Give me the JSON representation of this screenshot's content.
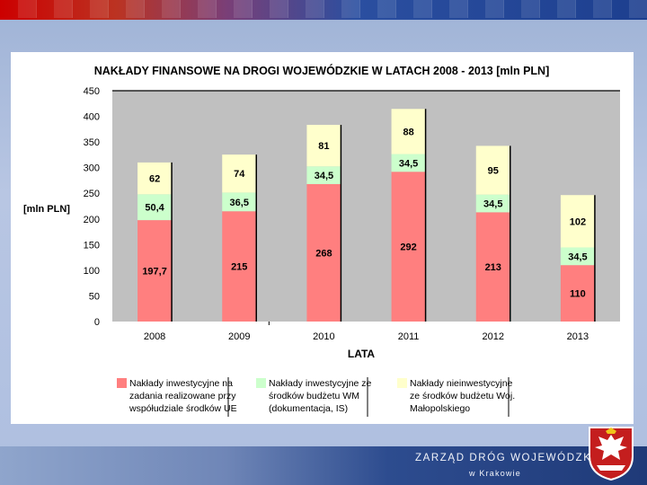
{
  "chart_data": {
    "type": "bar",
    "stacked": true,
    "title": "NAKŁADY FINANSOWE NA DROGI WOJEWÓDZKIE W LATACH 2008 - 2013 [mln PLN]",
    "xlabel": "LATA",
    "ylabel": "[mln PLN]",
    "ylim": [
      0,
      450
    ],
    "yticks": [
      "0",
      "50",
      "100",
      "150",
      "200",
      "250",
      "300",
      "350",
      "400",
      "450"
    ],
    "categories": [
      "2008",
      "2009",
      "2010",
      "2011",
      "2012",
      "2013"
    ],
    "series": [
      {
        "name": "Nakłady inwestycyjne na zadania realizowane przy współudziale środków UE",
        "color": "#ff7f7f",
        "values": [
          197.7,
          215,
          268,
          292,
          213,
          110
        ],
        "labels": [
          "197,7",
          "215",
          "268",
          "292",
          "213",
          "110"
        ]
      },
      {
        "name": "Nakłady inwestycyjne ze środków budżetu WM (dokumentacja, IS)",
        "color": "#ccffcc",
        "values": [
          50.4,
          36.5,
          34.5,
          34.5,
          34.5,
          34.5
        ],
        "labels": [
          "50,4",
          "36,5",
          "34,5",
          "34,5",
          "34,5",
          "34,5"
        ]
      },
      {
        "name": "Nakłady nieinwestycyjne ze środków budżetu Woj. Małopolskiego",
        "color": "#ffffcc",
        "values": [
          62,
          74,
          81,
          88,
          95,
          102
        ],
        "labels": [
          "62",
          "74",
          "81",
          "88",
          "95",
          "102"
        ]
      }
    ],
    "legend": [
      "Nakłady inwestycyjne na zadania realizowane przy współudziale środków UE",
      "Nakłady inwestycyjne ze środków budżetu WM (dokumentacja, IS)",
      "Nakłady nieinwestycyjne ze środków budżetu Woj. Małopolskiego"
    ],
    "legend_position": "bottom",
    "grid": false
  },
  "footer": {
    "org_name": "ZARZĄD DRÓG WOJEWÓDZKICH",
    "org_city": "w Krakowie"
  },
  "colors": {
    "plot_bg": "#c0c0c0",
    "bar_outline": "#000000"
  }
}
